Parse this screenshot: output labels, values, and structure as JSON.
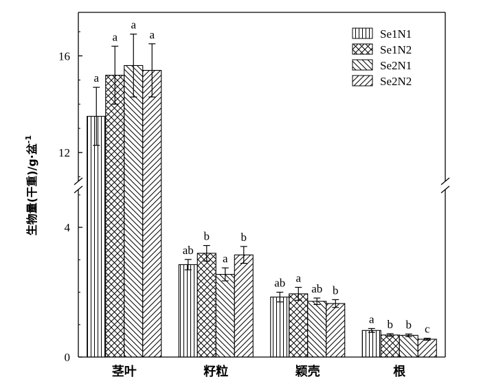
{
  "chart_data": {
    "type": "bar",
    "ylabel": "生物量(干重)/g·盆",
    "ylabel_sup": "-1",
    "categories": [
      "茎叶",
      "籽粒",
      "颖壳",
      "根"
    ],
    "y_ticks": [
      "0",
      "4",
      "12",
      "16"
    ],
    "y_axis_break": {
      "lower": [
        0,
        5.4
      ],
      "upper": [
        10.5,
        17.8
      ]
    },
    "legend_position": "top-right",
    "series": [
      {
        "name": "Se1N1",
        "pattern": "vertical-lines",
        "values": [
          13.5,
          2.85,
          1.85,
          0.82
        ],
        "errors": [
          1.2,
          0.16,
          0.15,
          0.06
        ],
        "labels": [
          "a",
          "ab",
          "ab",
          "a"
        ]
      },
      {
        "name": "Se1N2",
        "pattern": "crosshatch",
        "values": [
          15.2,
          3.2,
          1.95,
          0.68
        ],
        "errors": [
          1.2,
          0.24,
          0.2,
          0.04
        ],
        "labels": [
          "a",
          "b",
          "a",
          "b"
        ]
      },
      {
        "name": "Se2N1",
        "pattern": "back-diagonal",
        "values": [
          15.6,
          2.55,
          1.72,
          0.67
        ],
        "errors": [
          1.3,
          0.2,
          0.1,
          0.04
        ],
        "labels": [
          "a",
          "a",
          "ab",
          "b"
        ]
      },
      {
        "name": "Se2N2",
        "pattern": "forward-diagonal",
        "values": [
          15.4,
          3.15,
          1.65,
          0.55
        ],
        "errors": [
          1.1,
          0.26,
          0.12,
          0.03
        ],
        "labels": [
          "a",
          "b",
          "b",
          "c"
        ]
      }
    ],
    "colors": {
      "stroke": "#000000",
      "fill": "#ffffff"
    }
  }
}
